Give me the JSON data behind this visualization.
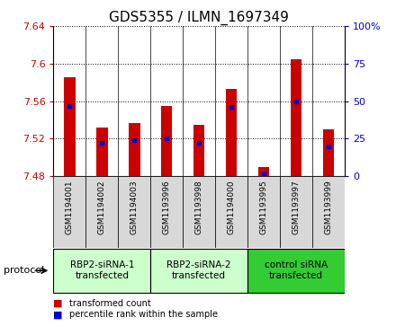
{
  "title": "GDS5355 / ILMN_1697349",
  "samples": [
    "GSM1194001",
    "GSM1194002",
    "GSM1194003",
    "GSM1193996",
    "GSM1193998",
    "GSM1194000",
    "GSM1193995",
    "GSM1193997",
    "GSM1193999"
  ],
  "transformed_counts": [
    7.585,
    7.532,
    7.537,
    7.555,
    7.535,
    7.573,
    7.49,
    7.605,
    7.53
  ],
  "percentile_ranks": [
    47,
    22,
    24,
    25,
    22,
    46,
    2,
    50,
    20
  ],
  "ylim": [
    7.48,
    7.64
  ],
  "yticks": [
    7.48,
    7.52,
    7.56,
    7.6,
    7.64
  ],
  "right_yticks": [
    0,
    25,
    50,
    75,
    100
  ],
  "right_ylim": [
    0,
    100
  ],
  "bar_color": "#cc0000",
  "percentile_color": "#0000cc",
  "bar_bottom": 7.48,
  "groups": [
    {
      "label": "RBP2-siRNA-1\ntransfected",
      "indices": [
        0,
        1,
        2
      ],
      "color": "#ccffcc"
    },
    {
      "label": "RBP2-siRNA-2\ntransfected",
      "indices": [
        3,
        4,
        5
      ],
      "color": "#ccffcc"
    },
    {
      "label": "control siRNA\ntransfected",
      "indices": [
        6,
        7,
        8
      ],
      "color": "#33cc33"
    }
  ],
  "legend_items": [
    {
      "color": "#cc0000",
      "label": "transformed count"
    },
    {
      "color": "#0000cc",
      "label": "percentile rank within the sample"
    }
  ],
  "protocol_label": "protocol",
  "sample_box_color": "#d8d8d8",
  "title_fontsize": 11,
  "tick_fontsize": 8,
  "bar_width": 0.35
}
